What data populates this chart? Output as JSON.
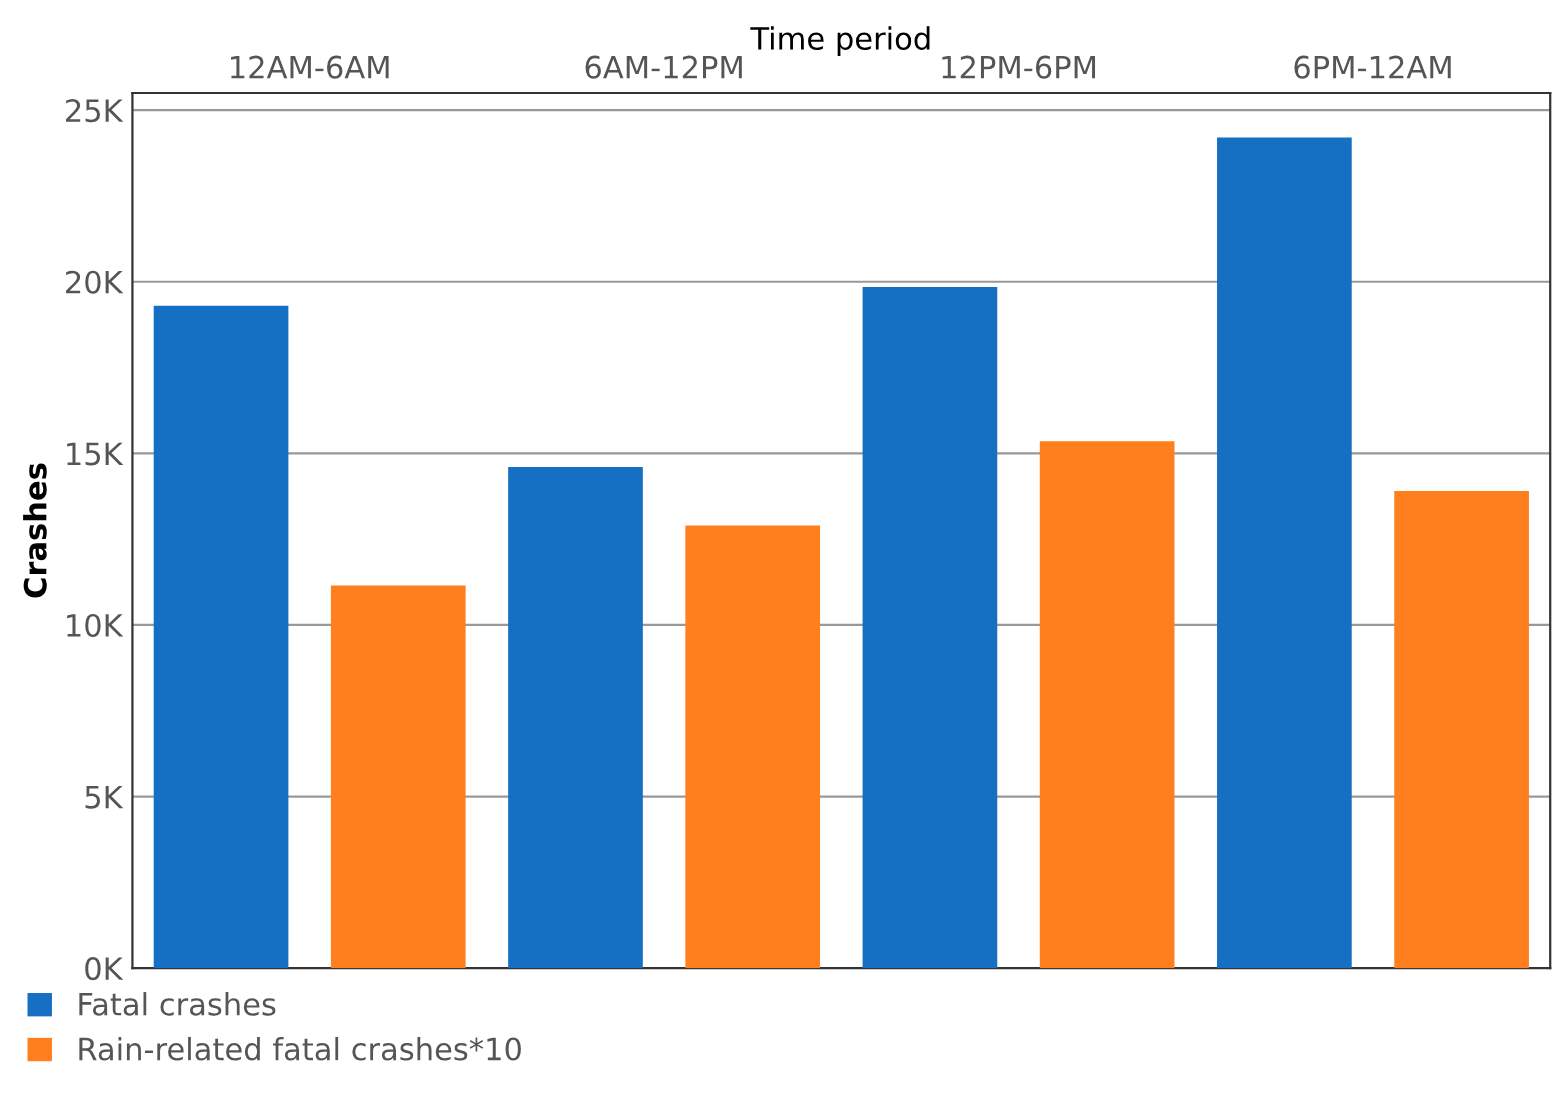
{
  "chart_data": {
    "type": "bar",
    "xlabel": "Time period",
    "ylabel": "Crashes",
    "categories": [
      "12AM-6AM",
      "6AM-12PM",
      "12PM-6PM",
      "6PM-12AM"
    ],
    "series": [
      {
        "name": "Fatal crashes",
        "color": "#1570c4",
        "values": [
          19300,
          14600,
          19850,
          24200
        ]
      },
      {
        "name": "Rain-related fatal crashes*10",
        "color": "#ff7f1e",
        "values": [
          11150,
          12900,
          15350,
          13900
        ]
      }
    ],
    "ylim": [
      0,
      25500
    ],
    "yticks": [
      {
        "value": 0,
        "label": "0K"
      },
      {
        "value": 5000,
        "label": "5K"
      },
      {
        "value": 10000,
        "label": "10K"
      },
      {
        "value": 15000,
        "label": "15K"
      },
      {
        "value": 20000,
        "label": "20K"
      },
      {
        "value": 25000,
        "label": "25K"
      }
    ],
    "grid": "y",
    "legend": "bottom left"
  }
}
